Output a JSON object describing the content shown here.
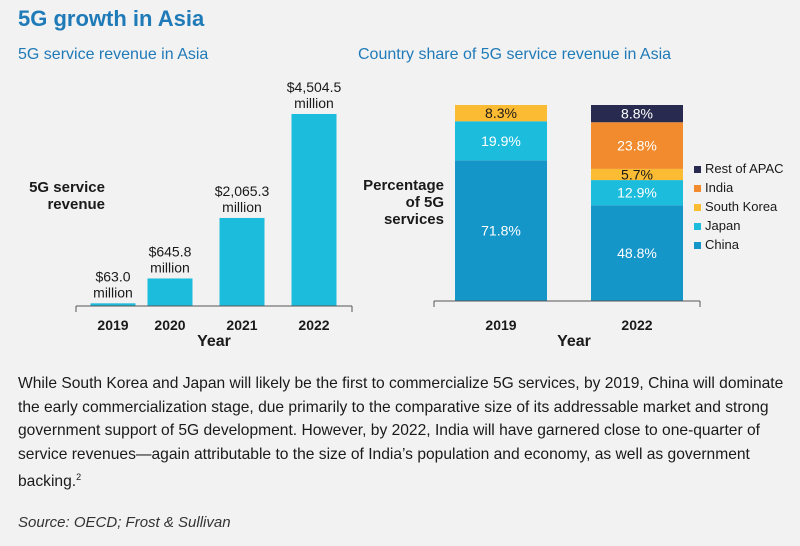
{
  "title": "5G growth in Asia",
  "paragraph": "While South Korea and Japan will likely be the first to commercialize 5G services, by 2019, China will dominate the early commercialization stage, due primarily to the comparative size of its addressable market and strong government support of 5G development. However, by 2022, India will have garnered close to one-quarter of service revenues—again attributable to the size of India’s population and economy, as well as government backing.",
  "footnote_mark": "2",
  "source": "Source: OECD; Frost & Sullivan",
  "colors": {
    "title": "#1f7ab8",
    "China": "#1596c9",
    "Japan": "#1cbcdc",
    "South Korea": "#fbbb32",
    "India": "#f18b2d",
    "Rest of APAC": "#282b4f",
    "revenue_bar": "#1cbcdc"
  },
  "chart_data": [
    {
      "type": "bar",
      "title": "5G service revenue in Asia",
      "ylabel": "5G service revenue",
      "xlabel": "Year",
      "categories": [
        "2019",
        "2020",
        "2021",
        "2022"
      ],
      "values": [
        63.0,
        645.8,
        2065.3,
        4504.5
      ],
      "data_labels": [
        [
          "$63.0",
          "million"
        ],
        [
          "$645.8",
          "million"
        ],
        [
          "$2,065.3",
          "million"
        ],
        [
          "$4,504.5",
          "million"
        ]
      ],
      "ylim": [
        0,
        4504.5
      ]
    },
    {
      "type": "bar",
      "stacked": true,
      "title": "Country share of 5G service revenue in Asia",
      "ylabel": "Percentage of 5G services",
      "xlabel": "Year",
      "categories": [
        "2019",
        "2022"
      ],
      "series": [
        {
          "name": "China",
          "values": [
            71.8,
            48.8
          ],
          "labels": [
            "71.8%",
            "48.8%"
          ]
        },
        {
          "name": "Japan",
          "values": [
            19.9,
            12.9
          ],
          "labels": [
            "19.9%",
            "12.9%"
          ]
        },
        {
          "name": "South Korea",
          "values": [
            8.3,
            5.7
          ],
          "labels": [
            "8.3%",
            "5.7%"
          ]
        },
        {
          "name": "India",
          "values": [
            0,
            23.8
          ],
          "labels": [
            "",
            "23.8%"
          ]
        },
        {
          "name": "Rest of APAC",
          "values": [
            0,
            8.8
          ],
          "labels": [
            "",
            "8.8%"
          ]
        }
      ],
      "legend": [
        "Rest of APAC",
        "India",
        "South Korea",
        "Japan",
        "China"
      ],
      "legend_position": "right",
      "ylim": [
        0,
        100
      ]
    }
  ]
}
